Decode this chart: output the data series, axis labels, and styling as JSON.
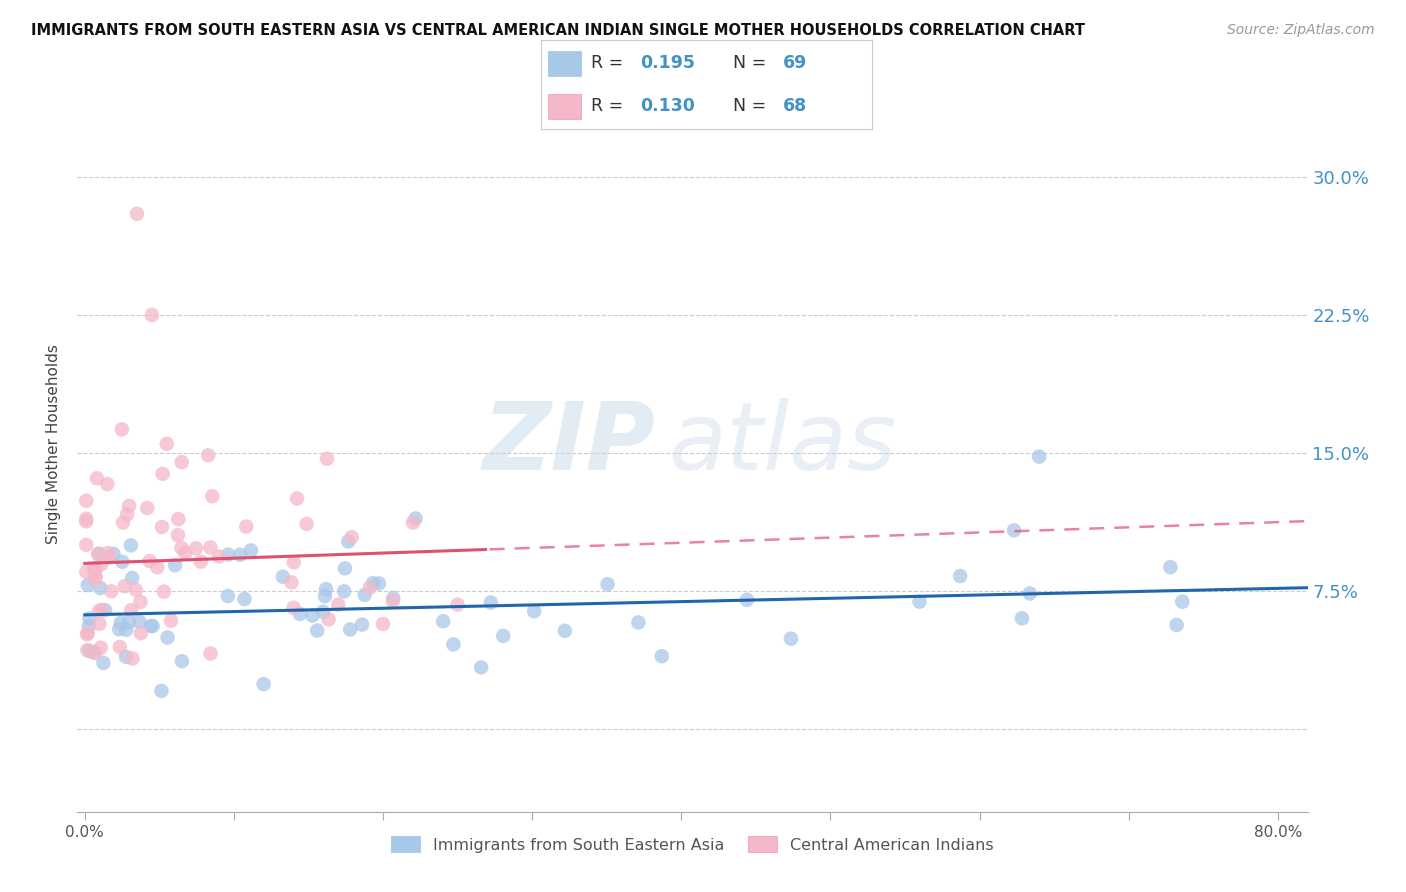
{
  "title": "IMMIGRANTS FROM SOUTH EASTERN ASIA VS CENTRAL AMERICAN INDIAN SINGLE MOTHER HOUSEHOLDS CORRELATION CHART",
  "source": "Source: ZipAtlas.com",
  "ylabel": "Single Mother Households",
  "y_ticks": [
    0.0,
    0.075,
    0.15,
    0.225,
    0.3
  ],
  "y_tick_labels_right": [
    "",
    "7.5%",
    "15.0%",
    "22.5%",
    "30.0%"
  ],
  "xlim": [
    -0.005,
    0.82
  ],
  "ylim": [
    -0.045,
    0.355
  ],
  "blue_color": "#a8c8e8",
  "pink_color": "#f4b8c8",
  "blue_line_color": "#2166ac",
  "pink_line_color": "#e05070",
  "R_blue": 0.195,
  "N_blue": 69,
  "R_pink": 0.13,
  "N_pink": 68,
  "legend_labels": [
    "Immigrants from South Eastern Asia",
    "Central American Indians"
  ],
  "watermark_zip": "ZIP",
  "watermark_atlas": "atlas",
  "grid_color": "#cccccc",
  "background_color": "#ffffff",
  "blue_intercept": 0.062,
  "blue_slope": 0.012,
  "pink_intercept": 0.092,
  "pink_slope": 0.02
}
